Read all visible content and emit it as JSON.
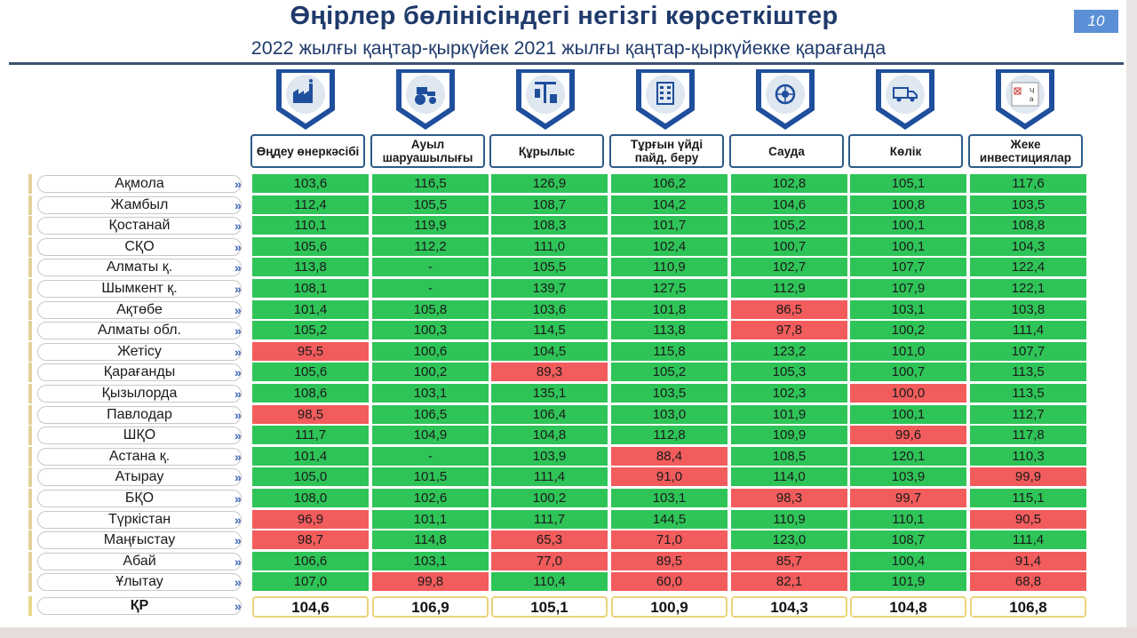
{
  "slide": {
    "title": "Өңірлер бөлінісіндегі негізгі көрсеткіштер",
    "subtitle": "2022 жылғы қаңтар-қыркүйек 2021 жылғы қаңтар-қыркүйекке қарағанда",
    "page_number": "10"
  },
  "colors": {
    "good": "#2fc458",
    "bad": "#f25c5c",
    "header_border": "#2d5b8a",
    "title": "#1f3a6b"
  },
  "columns": [
    {
      "label": "Өңдеу өнеркәсібі",
      "icon": "factory-icon"
    },
    {
      "label": "Ауыл шаруашылығы",
      "icon": "tractor-icon"
    },
    {
      "label": "Құрылыс",
      "icon": "crane-icon"
    },
    {
      "label": "Тұрғын үйді пайд. беру",
      "icon": "apartment-building-icon"
    },
    {
      "label": "Сауда",
      "icon": "trade-globe-icon"
    },
    {
      "label": "Көлік",
      "icon": "truck-icon"
    },
    {
      "label": "Жеке инвестициялар",
      "icon": "broken-image-icon",
      "icon_text": "Ч а"
    }
  ],
  "rows": [
    {
      "region": "Ақмола",
      "values": [
        "103,6",
        "116,5",
        "126,9",
        "106,2",
        "102,8",
        "105,1",
        "117,6"
      ],
      "status": [
        "g",
        "g",
        "g",
        "g",
        "g",
        "g",
        "g"
      ]
    },
    {
      "region": "Жамбыл",
      "values": [
        "112,4",
        "105,5",
        "108,7",
        "104,2",
        "104,6",
        "100,8",
        "103,5"
      ],
      "status": [
        "g",
        "g",
        "g",
        "g",
        "g",
        "g",
        "g"
      ]
    },
    {
      "region": "Қостанай",
      "values": [
        "110,1",
        "119,9",
        "108,3",
        "101,7",
        "105,2",
        "100,1",
        "108,8"
      ],
      "status": [
        "g",
        "g",
        "g",
        "g",
        "g",
        "g",
        "g"
      ]
    },
    {
      "region": "СҚО",
      "values": [
        "105,6",
        "112,2",
        "111,0",
        "102,4",
        "100,7",
        "100,1",
        "104,3"
      ],
      "status": [
        "g",
        "g",
        "g",
        "g",
        "g",
        "g",
        "g"
      ]
    },
    {
      "region": "Алматы қ.",
      "values": [
        "113,8",
        "-",
        "105,5",
        "110,9",
        "102,7",
        "107,7",
        "122,4"
      ],
      "status": [
        "g",
        "g",
        "g",
        "g",
        "g",
        "g",
        "g"
      ]
    },
    {
      "region": "Шымкент қ.",
      "values": [
        "108,1",
        "-",
        "139,7",
        "127,5",
        "112,9",
        "107,9",
        "122,1"
      ],
      "status": [
        "g",
        "g",
        "g",
        "g",
        "g",
        "g",
        "g"
      ]
    },
    {
      "region": "Ақтөбе",
      "values": [
        "101,4",
        "105,8",
        "103,6",
        "101,8",
        "86,5",
        "103,1",
        "103,8"
      ],
      "status": [
        "g",
        "g",
        "g",
        "g",
        "r",
        "g",
        "g"
      ]
    },
    {
      "region": "Алматы обл.",
      "values": [
        "105,2",
        "100,3",
        "114,5",
        "113,8",
        "97,8",
        "100,2",
        "111,4"
      ],
      "status": [
        "g",
        "g",
        "g",
        "g",
        "r",
        "g",
        "g"
      ]
    },
    {
      "region": "Жетісу",
      "values": [
        "95,5",
        "100,6",
        "104,5",
        "115,8",
        "123,2",
        "101,0",
        "107,7"
      ],
      "status": [
        "r",
        "g",
        "g",
        "g",
        "g",
        "g",
        "g"
      ]
    },
    {
      "region": "Қарағанды",
      "values": [
        "105,6",
        "100,2",
        "89,3",
        "105,2",
        "105,3",
        "100,7",
        "113,5"
      ],
      "status": [
        "g",
        "g",
        "r",
        "g",
        "g",
        "g",
        "g"
      ]
    },
    {
      "region": "Қызылорда",
      "values": [
        "108,6",
        "103,1",
        "135,1",
        "103,5",
        "102,3",
        "100,0",
        "113,5"
      ],
      "status": [
        "g",
        "g",
        "g",
        "g",
        "g",
        "r",
        "g"
      ]
    },
    {
      "region": "Павлодар",
      "values": [
        "98,5",
        "106,5",
        "106,4",
        "103,0",
        "101,9",
        "100,1",
        "112,7"
      ],
      "status": [
        "r",
        "g",
        "g",
        "g",
        "g",
        "g",
        "g"
      ]
    },
    {
      "region": "ШҚО",
      "values": [
        "111,7",
        "104,9",
        "104,8",
        "112,8",
        "109,9",
        "99,6",
        "117,8"
      ],
      "status": [
        "g",
        "g",
        "g",
        "g",
        "g",
        "r",
        "g"
      ]
    },
    {
      "region": "Астана қ.",
      "values": [
        "101,4",
        "-",
        "103,9",
        "88,4",
        "108,5",
        "120,1",
        "110,3"
      ],
      "status": [
        "g",
        "g",
        "g",
        "r",
        "g",
        "g",
        "g"
      ]
    },
    {
      "region": "Атырау",
      "values": [
        "105,0",
        "101,5",
        "111,4",
        "91,0",
        "114,0",
        "103,9",
        "99,9"
      ],
      "status": [
        "g",
        "g",
        "g",
        "r",
        "g",
        "g",
        "r"
      ]
    },
    {
      "region": "БҚО",
      "values": [
        "108,0",
        "102,6",
        "100,2",
        "103,1",
        "98,3",
        "99,7",
        "115,1"
      ],
      "status": [
        "g",
        "g",
        "g",
        "g",
        "r",
        "r",
        "g"
      ]
    },
    {
      "region": "Түркістан",
      "values": [
        "96,9",
        "101,1",
        "111,7",
        "144,5",
        "110,9",
        "110,1",
        "90,5"
      ],
      "status": [
        "r",
        "g",
        "g",
        "g",
        "g",
        "g",
        "r"
      ]
    },
    {
      "region": "Маңғыстау",
      "values": [
        "98,7",
        "114,8",
        "65,3",
        "71,0",
        "123,0",
        "108,7",
        "111,4"
      ],
      "status": [
        "r",
        "g",
        "r",
        "r",
        "g",
        "g",
        "g"
      ]
    },
    {
      "region": "Абай",
      "values": [
        "106,6",
        "103,1",
        "77,0",
        "89,5",
        "85,7",
        "100,4",
        "91,4"
      ],
      "status": [
        "g",
        "g",
        "r",
        "r",
        "r",
        "g",
        "r"
      ]
    },
    {
      "region": "Ұлытау",
      "values": [
        "107,0",
        "99,8",
        "110,4",
        "60,0",
        "82,1",
        "101,9",
        "68,8"
      ],
      "status": [
        "g",
        "r",
        "g",
        "r",
        "r",
        "g",
        "r"
      ]
    }
  ],
  "total": {
    "region": "ҚР",
    "values": [
      "104,6",
      "106,9",
      "105,1",
      "100,9",
      "104,3",
      "104,8",
      "106,8"
    ]
  },
  "chevron": "»"
}
